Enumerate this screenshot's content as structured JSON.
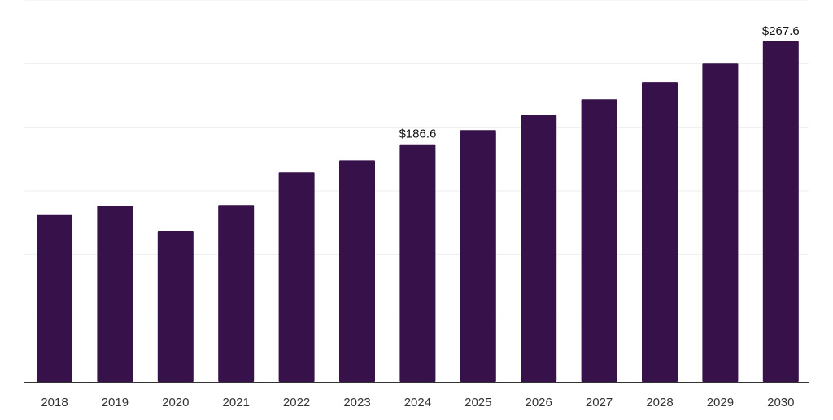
{
  "chart_data": {
    "type": "bar",
    "title": "",
    "xlabel": "",
    "ylabel": "",
    "categories": [
      "2018",
      "2019",
      "2020",
      "2021",
      "2022",
      "2023",
      "2024",
      "2025",
      "2026",
      "2027",
      "2028",
      "2029",
      "2030"
    ],
    "values": [
      131,
      138.5,
      118.7,
      139,
      164.5,
      174,
      186.6,
      197.7,
      209.5,
      222,
      235.5,
      250,
      267.6
    ],
    "data_labels": {
      "2024": "$186.6",
      "2030": "$267.6"
    },
    "ylim": [
      0,
      300
    ],
    "grid": true,
    "legend": "none",
    "colors": {
      "bar": "#371149",
      "axis": "#333333",
      "grid": "#eeeeee",
      "tick_text": "#333333",
      "label_text": "#111111"
    }
  }
}
